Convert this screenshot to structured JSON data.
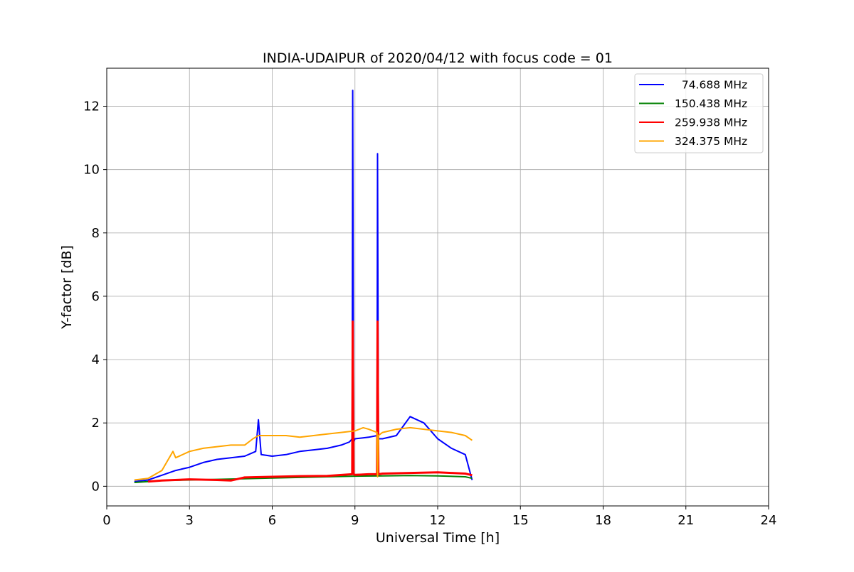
{
  "chart_data": {
    "type": "line",
    "title": "INDIA-UDAIPUR of 2020/04/12 with focus code = 01",
    "xlabel": "Universal Time [h]",
    "ylabel": "Y-factor [dB]",
    "xlim": [
      0,
      24
    ],
    "ylim": [
      -0.62,
      13.2
    ],
    "xticks": [
      0,
      3,
      6,
      9,
      12,
      15,
      18,
      21,
      24
    ],
    "yticks": [
      0,
      2,
      4,
      6,
      8,
      10,
      12
    ],
    "grid": true,
    "legend_position": "top-right",
    "series": [
      {
        "name": "  74.688 MHz",
        "color": "#0000ff",
        "x": [
          1.0,
          1.5,
          2.0,
          2.5,
          3.0,
          3.5,
          4.0,
          4.5,
          5.0,
          5.4,
          5.5,
          5.6,
          6.0,
          6.5,
          7.0,
          7.5,
          8.0,
          8.5,
          8.8,
          8.9,
          8.92,
          8.95,
          9.0,
          9.5,
          9.8,
          9.82,
          9.85,
          10.0,
          10.5,
          11.0,
          11.5,
          12.0,
          12.5,
          13.0,
          13.25
        ],
        "y": [
          0.15,
          0.2,
          0.35,
          0.5,
          0.6,
          0.75,
          0.85,
          0.9,
          0.95,
          1.1,
          2.1,
          1.0,
          0.95,
          1.0,
          1.1,
          1.15,
          1.2,
          1.3,
          1.4,
          1.5,
          12.5,
          1.4,
          1.5,
          1.55,
          1.6,
          10.5,
          1.5,
          1.5,
          1.6,
          2.2,
          2.0,
          1.5,
          1.2,
          1.0,
          0.2
        ]
      },
      {
        "name": "150.438 MHz",
        "color": "#008000",
        "x": [
          1.0,
          1.5,
          2.0,
          3.0,
          4.0,
          5.0,
          6.0,
          7.0,
          8.0,
          9.0,
          10.0,
          11.0,
          12.0,
          13.0,
          13.25
        ],
        "y": [
          0.12,
          0.15,
          0.18,
          0.2,
          0.22,
          0.24,
          0.26,
          0.28,
          0.3,
          0.32,
          0.33,
          0.34,
          0.33,
          0.3,
          0.25
        ]
      },
      {
        "name": "259.938 MHz",
        "color": "#ff0000",
        "x": [
          1.5,
          2.0,
          3.0,
          4.0,
          4.5,
          5.0,
          6.0,
          7.0,
          8.0,
          8.9,
          8.92,
          8.95,
          9.0,
          9.5,
          9.8,
          9.82,
          9.85,
          10.0,
          11.0,
          12.0,
          12.5,
          13.0,
          13.25
        ],
        "y": [
          0.15,
          0.18,
          0.22,
          0.2,
          0.18,
          0.28,
          0.3,
          0.32,
          0.33,
          0.38,
          5.2,
          0.38,
          0.36,
          0.38,
          0.38,
          5.2,
          0.38,
          0.4,
          0.42,
          0.44,
          0.42,
          0.4,
          0.35
        ]
      },
      {
        "name": "324.375 MHz",
        "color": "#ffa500",
        "x": [
          1.0,
          1.5,
          2.0,
          2.4,
          2.5,
          3.0,
          3.5,
          4.0,
          4.5,
          5.0,
          5.3,
          5.5,
          6.0,
          6.5,
          7.0,
          7.5,
          8.0,
          8.5,
          9.0,
          9.3,
          9.5,
          9.8,
          9.82,
          9.85,
          10.0,
          10.5,
          11.0,
          11.5,
          12.0,
          12.5,
          13.0,
          13.25
        ],
        "y": [
          0.2,
          0.25,
          0.5,
          1.1,
          0.9,
          1.1,
          1.2,
          1.25,
          1.3,
          1.3,
          1.5,
          1.6,
          1.6,
          1.6,
          1.55,
          1.6,
          1.65,
          1.7,
          1.75,
          1.85,
          1.8,
          1.7,
          0.3,
          1.6,
          1.7,
          1.8,
          1.85,
          1.8,
          1.75,
          1.7,
          1.6,
          1.45
        ]
      }
    ]
  }
}
